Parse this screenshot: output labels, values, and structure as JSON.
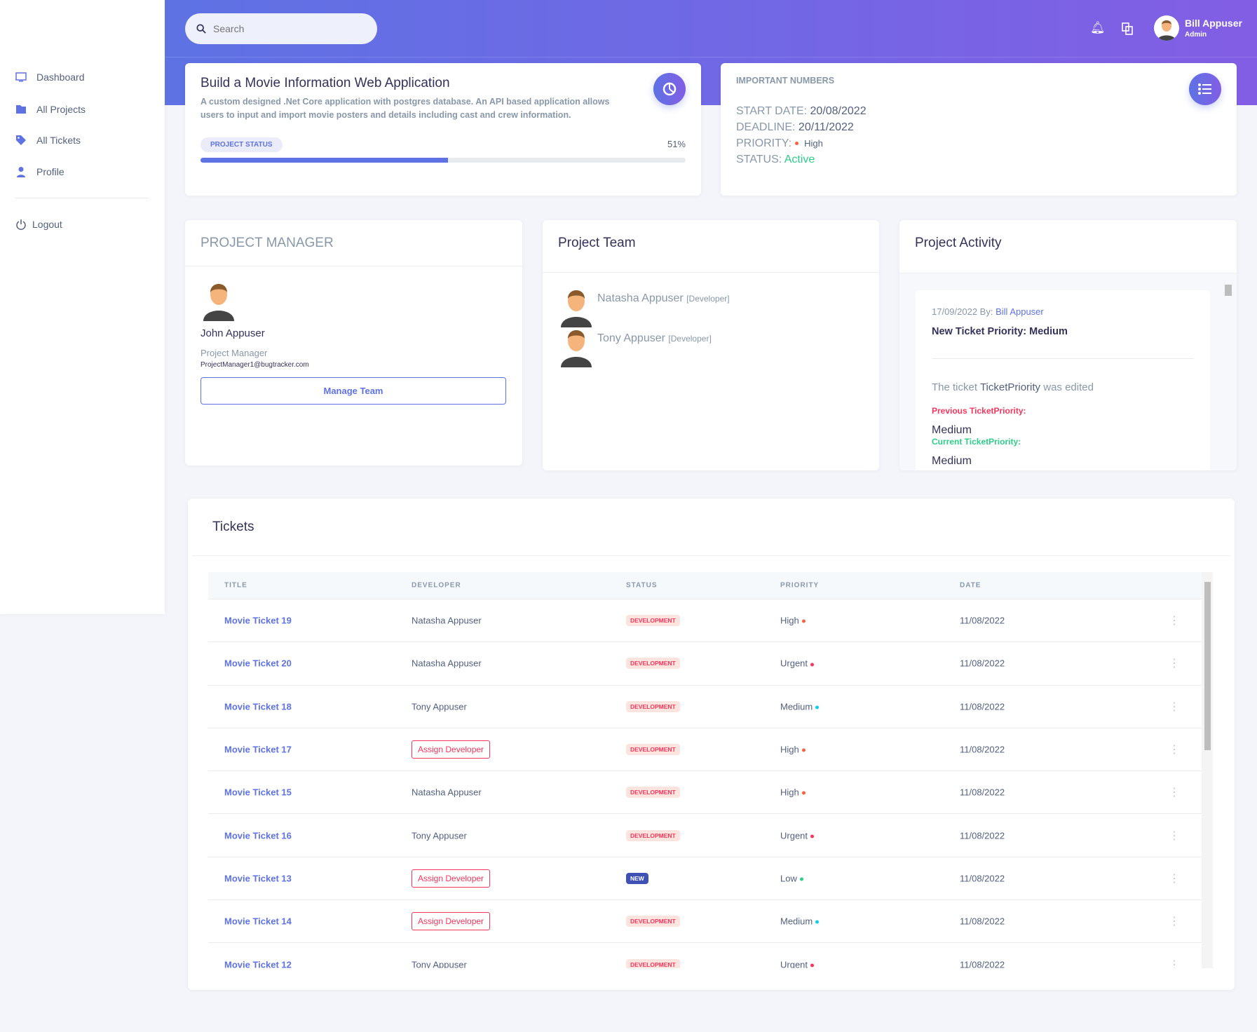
{
  "sidebar": {
    "items": [
      {
        "label": "Dashboard",
        "icon": "monitor-icon"
      },
      {
        "label": "All Projects",
        "icon": "folder-icon"
      },
      {
        "label": "All Tickets",
        "icon": "tag-icon"
      },
      {
        "label": "Profile",
        "icon": "user-icon"
      }
    ],
    "logout": "Logout"
  },
  "header": {
    "search_placeholder": "Search",
    "user_name": "Bill Appuser",
    "user_role": "Admin"
  },
  "project": {
    "title": "Build a Movie Information Web Application",
    "description": "A custom designed .Net Core application with postgres database. An API based application allows users to input and import movie posters and details including cast and crew information.",
    "status_label": "PROJECT STATUS",
    "progress_text": "51%",
    "progress": 51
  },
  "numbers": {
    "heading": "IMPORTANT NUMBERS",
    "start_label": "START DATE:",
    "start": "20/08/2022",
    "deadline_label": "DEADLINE:",
    "deadline": "20/11/2022",
    "priority_label": "PRIORITY:",
    "priority": "High",
    "status_label": "STATUS:",
    "status": "Active"
  },
  "manager": {
    "heading": "PROJECT MANAGER",
    "name": "John Appuser",
    "role": "Project Manager",
    "email": "ProjectManager1@bugtracker.com",
    "button": "Manage Team"
  },
  "team": {
    "heading": "Project Team",
    "members": [
      {
        "name": "Natasha Appuser",
        "role": "[Developer]"
      },
      {
        "name": "Tony Appuser",
        "role": "[Developer]"
      }
    ]
  },
  "activity": {
    "heading": "Project Activity",
    "date": "17/09/2022 By:",
    "by": "Bill Appuser",
    "title": "New Ticket Priority: Medium",
    "text_pre": "The ticket",
    "text_prop": "TicketPriority",
    "text_post": "was edited",
    "prev_label": "Previous TicketPriority:",
    "prev": "Medium",
    "curr_label": "Current TicketPriority:",
    "curr": "Medium"
  },
  "tickets": {
    "heading": "Tickets",
    "columns": [
      "TITLE",
      "DEVELOPER",
      "STATUS",
      "PRIORITY",
      "DATE"
    ],
    "assign_label": "Assign Developer",
    "rows": [
      {
        "title": "Movie Ticket 19",
        "developer": "Natasha Appuser",
        "status": "DEVELOPMENT",
        "priority": "High",
        "date": "11/08/2022"
      },
      {
        "title": "Movie Ticket 20",
        "developer": "Natasha Appuser",
        "status": "DEVELOPMENT",
        "priority": "Urgent",
        "date": "11/08/2022"
      },
      {
        "title": "Movie Ticket 18",
        "developer": "Tony Appuser",
        "status": "DEVELOPMENT",
        "priority": "Medium",
        "date": "11/08/2022"
      },
      {
        "title": "Movie Ticket 17",
        "developer": "",
        "status": "DEVELOPMENT",
        "priority": "High",
        "date": "11/08/2022"
      },
      {
        "title": "Movie Ticket 15",
        "developer": "Natasha Appuser",
        "status": "DEVELOPMENT",
        "priority": "High",
        "date": "11/08/2022"
      },
      {
        "title": "Movie Ticket 16",
        "developer": "Tony Appuser",
        "status": "DEVELOPMENT",
        "priority": "Urgent",
        "date": "11/08/2022"
      },
      {
        "title": "Movie Ticket 13",
        "developer": "",
        "status": "NEW",
        "priority": "Low",
        "date": "11/08/2022"
      },
      {
        "title": "Movie Ticket 14",
        "developer": "",
        "status": "DEVELOPMENT",
        "priority": "Medium",
        "date": "11/08/2022"
      },
      {
        "title": "Movie Ticket 12",
        "developer": "Tony Appuser",
        "status": "DEVELOPMENT",
        "priority": "Urgent",
        "date": "11/08/2022"
      }
    ]
  },
  "colors": {
    "accent": "#5e72e4",
    "high": "#fb6340",
    "urgent": "#f5365c",
    "medium": "#11cdef",
    "low": "#2dce89",
    "active": "#2dce89"
  }
}
